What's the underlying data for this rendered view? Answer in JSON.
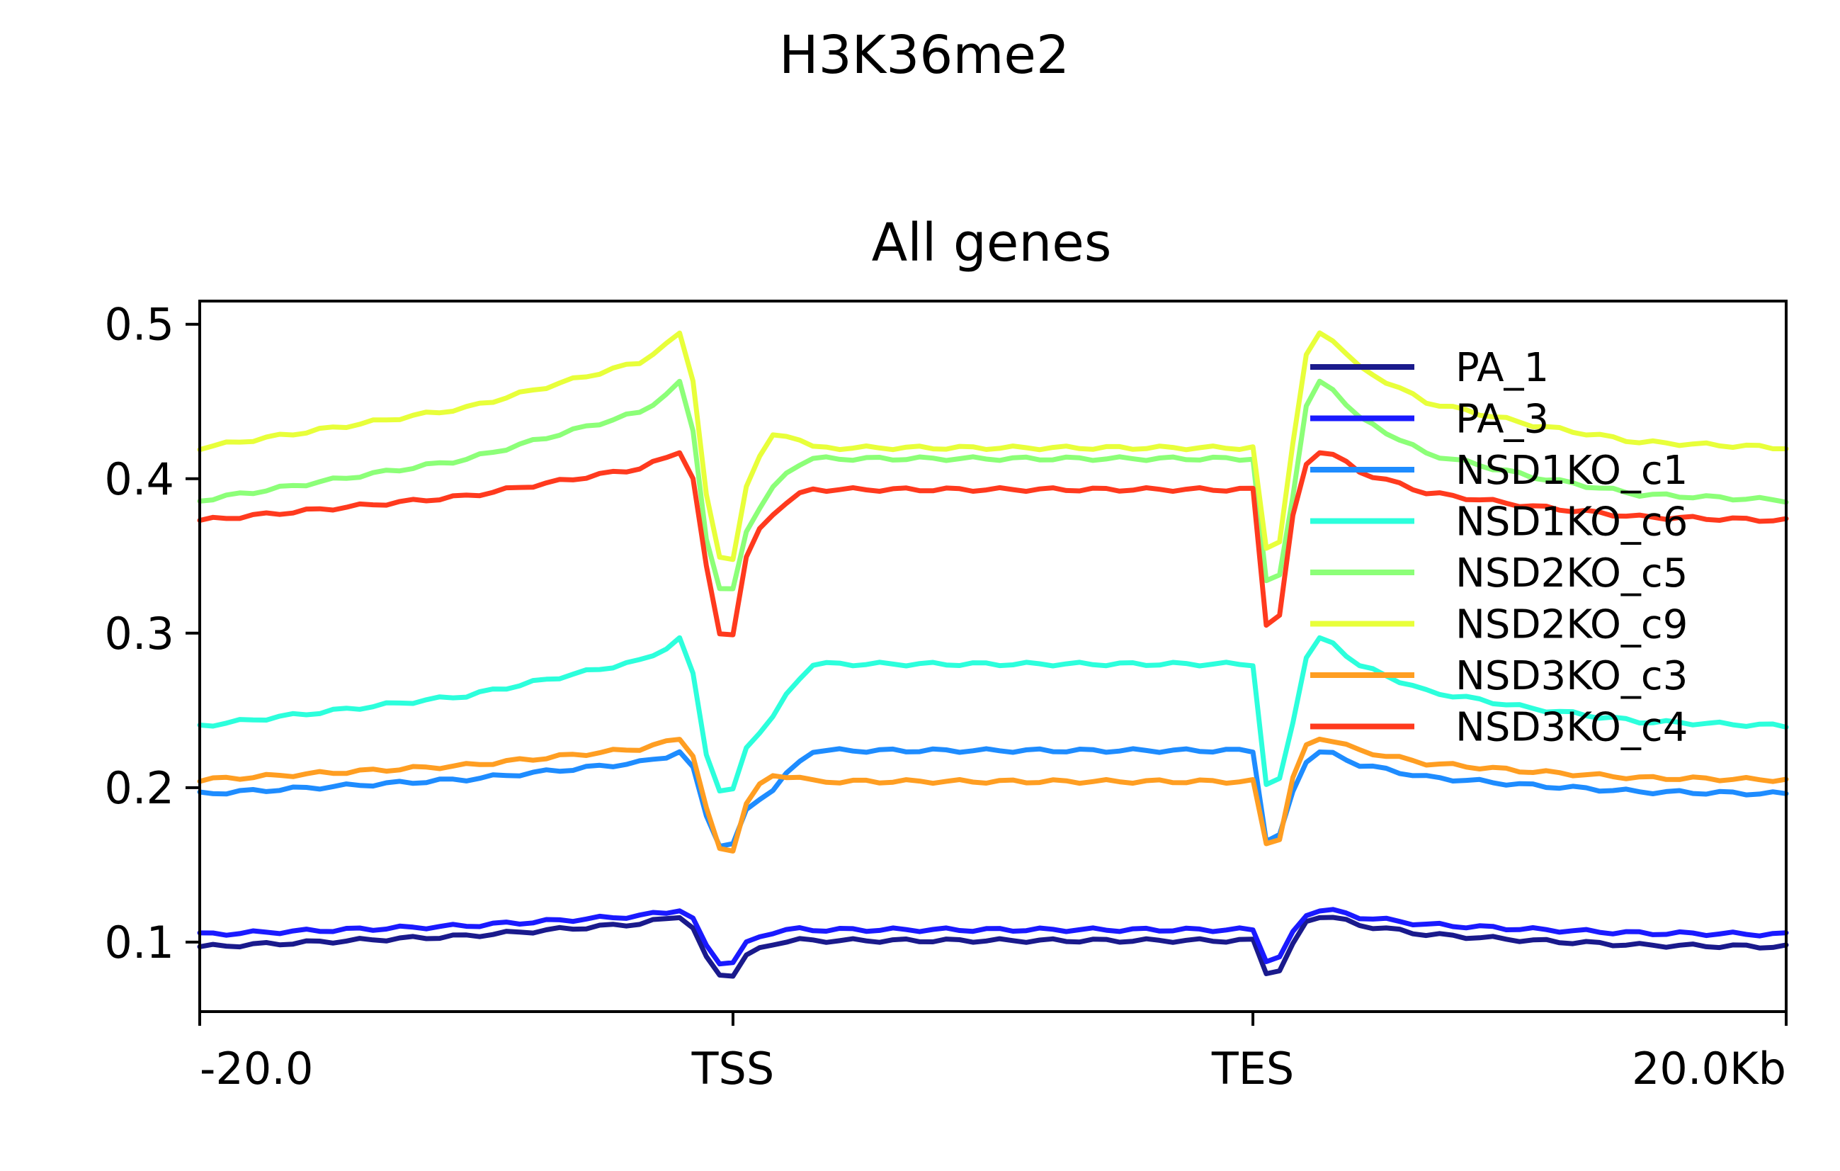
{
  "chart_data": {
    "type": "line",
    "suptitle": "H3K36me2",
    "title": "All genes",
    "xlabel": "",
    "ylabel": "",
    "x_ticks": [
      {
        "pos": 0,
        "label": "-20.0"
      },
      {
        "pos": 40,
        "label": "TSS"
      },
      {
        "pos": 79,
        "label": "TES"
      },
      {
        "pos": 119,
        "label": "20.0Kb"
      }
    ],
    "y_ticks": [
      0.1,
      0.2,
      0.3,
      0.4,
      0.5
    ],
    "y_tick_labels": [
      "0.1",
      "0.2",
      "0.3",
      "0.4",
      "0.5"
    ],
    "xlim": [
      0,
      119
    ],
    "ylim": [
      0.055,
      0.515
    ],
    "grid": false,
    "legend_position": "right",
    "profile_points": [
      [
        0,
        0
      ],
      [
        20,
        0.35
      ],
      [
        33,
        0.75
      ],
      [
        35,
        0.9
      ],
      [
        36,
        1.0
      ],
      [
        37,
        0.6
      ],
      [
        38,
        -0.25
      ],
      [
        39,
        -0.6
      ],
      [
        40,
        -0.6
      ],
      [
        41,
        -0.2
      ],
      [
        43,
        0.1
      ],
      [
        46,
        0.3
      ],
      [
        79,
        0.3
      ],
      [
        80,
        -0.55
      ],
      [
        81,
        -0.5
      ],
      [
        82,
        0.05
      ],
      [
        83,
        0.8
      ],
      [
        84,
        1.0
      ],
      [
        85,
        0.95
      ],
      [
        87,
        0.7
      ],
      [
        92,
        0.4
      ],
      [
        100,
        0.2
      ],
      [
        108,
        0.05
      ],
      [
        119,
        0
      ]
    ],
    "series": [
      {
        "name": "PA_1",
        "color": "#1a1a8c",
        "base": 0.097,
        "peak": 0.117,
        "trough": 0.079,
        "body": 0.101
      },
      {
        "name": "PA_3",
        "color": "#1a1aff",
        "base": 0.105,
        "peak": 0.121,
        "trough": 0.087,
        "body": 0.108
      },
      {
        "name": "NSD1KO_c1",
        "color": "#1e8cff",
        "base": 0.196,
        "peak": 0.223,
        "trough": 0.163,
        "body": 0.224
      },
      {
        "name": "NSD1KO_c6",
        "color": "#2cffdc",
        "base": 0.24,
        "peak": 0.296,
        "trough": 0.198,
        "body": 0.28
      },
      {
        "name": "NSD2KO_c5",
        "color": "#8cff78",
        "base": 0.386,
        "peak": 0.462,
        "trough": 0.328,
        "body": 0.413
      },
      {
        "name": "NSD2KO_c9",
        "color": "#e8ff3a",
        "base": 0.42,
        "peak": 0.494,
        "trough": 0.348,
        "body": 0.42
      },
      {
        "name": "NSD3KO_c3",
        "color": "#ff9e22",
        "base": 0.205,
        "peak": 0.232,
        "trough": 0.16,
        "body": 0.204
      },
      {
        "name": "NSD3KO_c4",
        "color": "#ff3a1e",
        "base": 0.373,
        "peak": 0.418,
        "trough": 0.3,
        "body": 0.393
      }
    ]
  }
}
